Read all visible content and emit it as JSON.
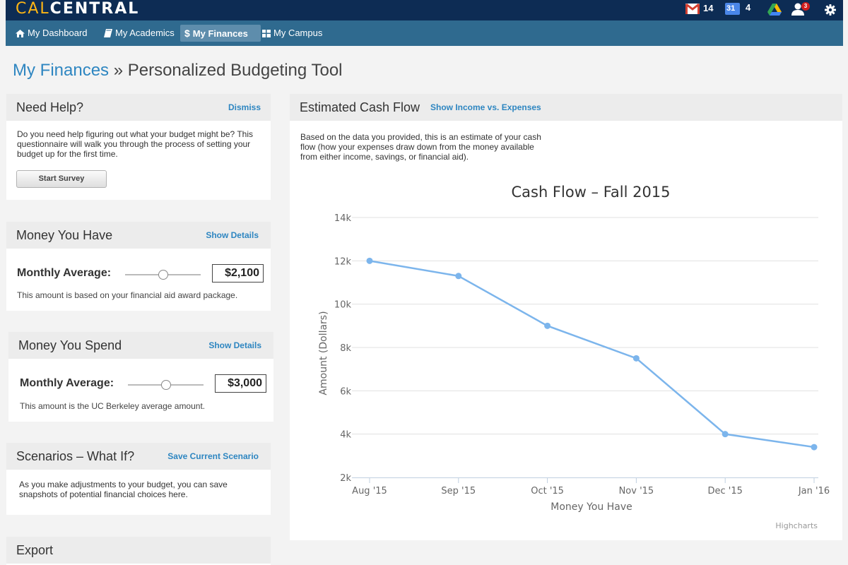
{
  "app": {
    "logo_part1": "CAL",
    "logo_part2": "CENTRAL"
  },
  "top_icons": {
    "mail_count": "14",
    "calendar_day": "31",
    "calendar_count": "4",
    "notifications_badge": "3"
  },
  "nav": {
    "items": [
      {
        "label": "My Dashboard",
        "icon": "home-icon"
      },
      {
        "label": "My Academics",
        "icon": "book-icon"
      },
      {
        "label": "My Finances",
        "icon": "dollar-icon",
        "active": true
      },
      {
        "label": "My Campus",
        "icon": "grid-icon"
      }
    ]
  },
  "page": {
    "breadcrumb": "My Finances",
    "separator": " » ",
    "title": "Personalized Budgeting Tool"
  },
  "help": {
    "title": "Need Help?",
    "dismiss": "Dismiss",
    "line1": "Do you need help figuring out what your budget might be? This",
    "line2": "questionnaire will walk you through the process of setting your",
    "line3": "budget up for the first time.",
    "button": "Start Survey"
  },
  "money_have": {
    "title": "Money You Have",
    "action": "Show Details",
    "label": "Monthly Average:",
    "amount": "$2,100",
    "slider_fraction": 0.5,
    "note": "This amount is based on your financial aid award package."
  },
  "money_spend": {
    "title": "Money You Spend",
    "action": "Show Details",
    "label": "Monthly Average:",
    "amount": "$3,000",
    "slider_fraction": 0.5,
    "note": "This amount is the UC Berkeley average amount."
  },
  "scenarios": {
    "title": "Scenarios – What If?",
    "action": "Save Current Scenario",
    "line1": "As you make adjustments to your budget, you can save",
    "line2": "snapshots of potential financial choices here."
  },
  "export": {
    "title": "Export"
  },
  "cashflow": {
    "title": "Estimated Cash Flow",
    "action": "Show Income vs. Expenses",
    "line1": "Based on the data you provided, this is an estimate of your cash",
    "line2": "flow (how your expenses draw down from the money available",
    "line3": "from either income, savings, or financial aid).",
    "credit": "Highcharts"
  },
  "chart_data": {
    "type": "line",
    "title": "Cash Flow – Fall 2015",
    "xlabel": "Money You Have",
    "ylabel": "Amount (Dollars)",
    "categories": [
      "Aug '15",
      "Sep '15",
      "Oct '15",
      "Nov '15",
      "Dec '15",
      "Jan '16"
    ],
    "series": [
      {
        "values": [
          12000,
          11300,
          9000,
          7500,
          4000,
          3400
        ]
      }
    ],
    "ylim": [
      2000,
      14000
    ],
    "yticks": [
      2000,
      4000,
      6000,
      8000,
      10000,
      12000,
      14000
    ],
    "ytick_labels": [
      "2k",
      "4k",
      "6k",
      "8k",
      "10k",
      "12k",
      "14k"
    ],
    "grid": true,
    "line_color": "#7cb5ec"
  }
}
